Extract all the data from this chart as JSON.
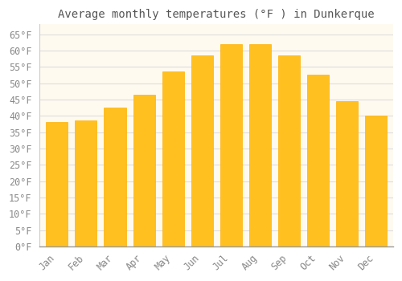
{
  "title": "Average monthly temperatures (°F ) in Dunkerque",
  "months": [
    "Jan",
    "Feb",
    "Mar",
    "Apr",
    "May",
    "Jun",
    "Jul",
    "Aug",
    "Sep",
    "Oct",
    "Nov",
    "Dec"
  ],
  "values": [
    38,
    38.5,
    42.5,
    46.5,
    53.5,
    58.5,
    62,
    62,
    58.5,
    52.5,
    44.5,
    40
  ],
  "bar_color": "#FFC020",
  "bar_edge_color": "#FFB000",
  "background_color": "#FFFFFF",
  "plot_bg_color": "#FFFAF0",
  "grid_color": "#DDDDDD",
  "text_color": "#888888",
  "title_color": "#555555",
  "ylim": [
    0,
    68
  ],
  "yticks": [
    0,
    5,
    10,
    15,
    20,
    25,
    30,
    35,
    40,
    45,
    50,
    55,
    60,
    65
  ],
  "title_fontsize": 10,
  "tick_fontsize": 8.5
}
